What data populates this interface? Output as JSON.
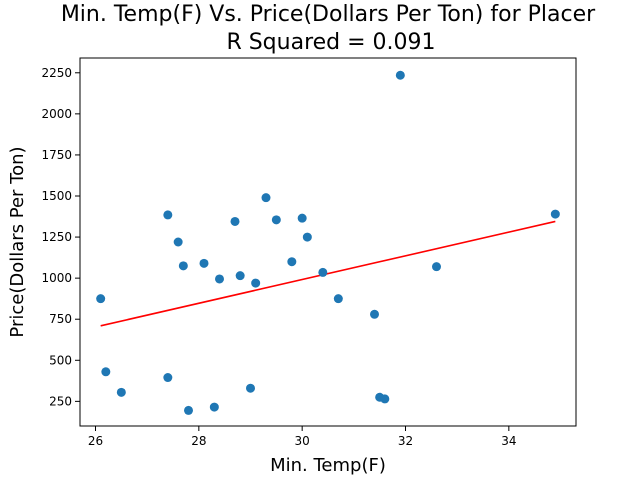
{
  "chart_data": {
    "type": "scatter",
    "title": "Min. Temp(F) Vs. Price(Dollars Per Ton) for Placer",
    "subtitle": "R Squared =  0.091",
    "xlabel": "Min. Temp(F)",
    "ylabel": "Price(Dollars Per Ton)",
    "xlim": [
      25.7,
      35.3
    ],
    "ylim": [
      100,
      2340
    ],
    "xticks": [
      26,
      28,
      30,
      32,
      34
    ],
    "yticks": [
      250,
      500,
      750,
      1000,
      1250,
      1500,
      1750,
      2000,
      2250
    ],
    "grid": false,
    "colors": {
      "points": "#1f77b4",
      "fit": "#ff0000"
    },
    "series": [
      {
        "type": "scatter",
        "x": [
          26.1,
          26.2,
          26.5,
          27.4,
          27.4,
          27.6,
          27.7,
          27.8,
          28.1,
          28.3,
          28.4,
          28.7,
          28.8,
          29.0,
          29.1,
          29.3,
          29.5,
          29.8,
          30.0,
          30.1,
          30.4,
          30.7,
          31.4,
          31.5,
          31.6,
          31.9,
          32.6,
          34.9
        ],
        "y": [
          875,
          430,
          305,
          1385,
          395,
          1220,
          1075,
          195,
          1090,
          215,
          995,
          1345,
          1015,
          330,
          970,
          1490,
          1355,
          1100,
          1365,
          1250,
          1035,
          875,
          780,
          275,
          265,
          2235,
          1070,
          1390
        ]
      },
      {
        "type": "line",
        "x": [
          26.1,
          34.9
        ],
        "y": [
          710,
          1345
        ]
      }
    ]
  }
}
